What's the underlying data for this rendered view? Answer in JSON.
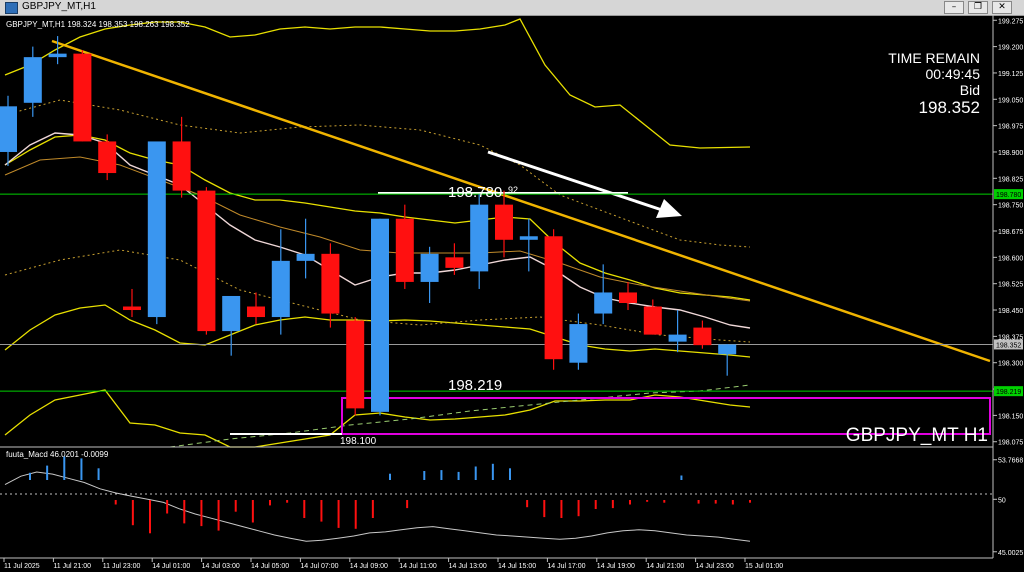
{
  "window": {
    "title": "GBPJPY_MT,H1",
    "minimize_label": "–",
    "restore_label": "❐",
    "close_label": "✕"
  },
  "chart_data": {
    "type": "candlestick",
    "symbol": "GBPJPY_MT,H1",
    "ohlc_header": "GBPJPY_MT,H1  198.324 198.353 198.263 198.352",
    "watermark": "GBPJPY_MT H1",
    "info": {
      "time_remain_label": "TIME REMAIN",
      "time_remain": "00:49:45",
      "bid_label": "Bid",
      "bid": "198.352"
    },
    "y_axis": {
      "range": [
        198.06,
        199.29
      ],
      "ticks": [
        "199.275",
        "199.200",
        "199.125",
        "199.050",
        "198.975",
        "198.900",
        "198.825",
        "198.750",
        "198.675",
        "198.600",
        "198.525",
        "198.450",
        "198.375",
        "198.300",
        "198.225",
        "198.150",
        "198.075"
      ],
      "price_labels": [
        {
          "text": "198.780",
          "value": 198.78,
          "color": "#00d000"
        },
        {
          "text": "198.352",
          "value": 198.352,
          "color": "#c0c0c0"
        },
        {
          "text": "198.219",
          "value": 198.219,
          "color": "#00d000"
        }
      ]
    },
    "x_axis": {
      "labels": [
        "11 Jul 2025",
        "11 Jul 21:00",
        "11 Jul 23:00",
        "14 Jul 01:00",
        "14 Jul 03:00",
        "14 Jul 05:00",
        "14 Jul 07:00",
        "14 Jul 09:00",
        "14 Jul 11:00",
        "14 Jul 13:00",
        "14 Jul 15:00",
        "14 Jul 17:00",
        "14 Jul 19:00",
        "14 Jul 21:00",
        "14 Jul 23:00",
        "15 Jul 01:00"
      ]
    },
    "candles": [
      {
        "o": 198.9,
        "h": 199.06,
        "l": 198.86,
        "c": 199.03
      },
      {
        "o": 199.04,
        "h": 199.2,
        "l": 199.0,
        "c": 199.17
      },
      {
        "o": 199.17,
        "h": 199.23,
        "l": 199.15,
        "c": 199.18
      },
      {
        "o": 199.18,
        "h": 199.19,
        "l": 198.93,
        "c": 198.93
      },
      {
        "o": 198.93,
        "h": 198.95,
        "l": 198.82,
        "c": 198.84
      },
      {
        "o": 198.46,
        "h": 198.51,
        "l": 198.43,
        "c": 198.45
      },
      {
        "o": 198.43,
        "h": 198.93,
        "l": 198.41,
        "c": 198.93
      },
      {
        "o": 198.93,
        "h": 199.0,
        "l": 198.77,
        "c": 198.79
      },
      {
        "o": 198.79,
        "h": 198.8,
        "l": 198.38,
        "c": 198.39
      },
      {
        "o": 198.39,
        "h": 198.49,
        "l": 198.32,
        "c": 198.49
      },
      {
        "o": 198.46,
        "h": 198.5,
        "l": 198.41,
        "c": 198.43
      },
      {
        "o": 198.43,
        "h": 198.68,
        "l": 198.38,
        "c": 198.59
      },
      {
        "o": 198.59,
        "h": 198.71,
        "l": 198.54,
        "c": 198.61
      },
      {
        "o": 198.61,
        "h": 198.64,
        "l": 198.4,
        "c": 198.44
      },
      {
        "o": 198.42,
        "h": 198.43,
        "l": 198.15,
        "c": 198.17
      },
      {
        "o": 198.16,
        "h": 198.71,
        "l": 198.15,
        "c": 198.71
      },
      {
        "o": 198.71,
        "h": 198.75,
        "l": 198.51,
        "c": 198.53
      },
      {
        "o": 198.53,
        "h": 198.63,
        "l": 198.47,
        "c": 198.61
      },
      {
        "o": 198.6,
        "h": 198.64,
        "l": 198.55,
        "c": 198.57
      },
      {
        "o": 198.56,
        "h": 198.78,
        "l": 198.51,
        "c": 198.75
      },
      {
        "o": 198.75,
        "h": 198.79,
        "l": 198.6,
        "c": 198.65
      },
      {
        "o": 198.65,
        "h": 198.71,
        "l": 198.56,
        "c": 198.66
      },
      {
        "o": 198.66,
        "h": 198.68,
        "l": 198.28,
        "c": 198.31
      },
      {
        "o": 198.3,
        "h": 198.44,
        "l": 198.28,
        "c": 198.41
      },
      {
        "o": 198.44,
        "h": 198.58,
        "l": 198.41,
        "c": 198.5
      },
      {
        "o": 198.5,
        "h": 198.53,
        "l": 198.45,
        "c": 198.47
      },
      {
        "o": 198.46,
        "h": 198.48,
        "l": 198.38,
        "c": 198.38
      },
      {
        "o": 198.36,
        "h": 198.45,
        "l": 198.33,
        "c": 198.38
      },
      {
        "o": 198.4,
        "h": 198.42,
        "l": 198.34,
        "c": 198.35
      },
      {
        "o": 198.324,
        "h": 198.353,
        "l": 198.263,
        "c": 198.352
      }
    ],
    "horizontal_levels": [
      {
        "value": 198.78,
        "color": "#00d000"
      },
      {
        "value": 198.219,
        "color": "#00d000"
      },
      {
        "value": 198.352,
        "color": "#9a9a9a"
      }
    ],
    "annotations": [
      {
        "text": "198.780",
        "superscript": "92"
      },
      {
        "text": "198.219"
      },
      {
        "text": "198.100"
      }
    ],
    "macd_panel": {
      "label": "fuuta_Macd 46.0201  -0.0099",
      "ticks": [
        "53.7668",
        "50",
        "45.0025"
      ],
      "range": [
        44.6,
        54.6
      ],
      "line": [
        51.4,
        52.2,
        52.6,
        52.4,
        52.0,
        51.6,
        51.0,
        50.6,
        50.3,
        50.0,
        49.7,
        49.1,
        48.6,
        48.2,
        47.8,
        47.4,
        47.0,
        46.6,
        46.3,
        46.0,
        46.1,
        46.3,
        46.5,
        46.8,
        46.9,
        47.1,
        47.3,
        47.4,
        47.2,
        47.0,
        46.8,
        46.6,
        46.5,
        46.4,
        46.3,
        46.2,
        46.3,
        46.5,
        46.8,
        47.0,
        47.1,
        47.0,
        46.8,
        46.6,
        46.5,
        46.4,
        46.2,
        46.0
      ],
      "histogram": [
        0.8,
        1.6,
        2.6,
        2.4,
        1.3,
        -0.5,
        -2.8,
        -3.7,
        -1.5,
        -2.6,
        -2.9,
        -3.4,
        -1.3,
        -2.5,
        -0.6,
        -0.3,
        -2.0,
        -2.4,
        -3.1,
        -3.2,
        -2.0,
        0.7,
        -0.9,
        1.0,
        1.1,
        0.9,
        1.5,
        1.8,
        1.3,
        -0.8,
        -1.9,
        -2.0,
        -1.8,
        -1.0,
        -0.9,
        -0.5,
        -0.2,
        -0.3,
        0.5,
        -0.4,
        -0.4,
        -0.5,
        -0.3
      ],
      "zero_level": "50"
    }
  }
}
